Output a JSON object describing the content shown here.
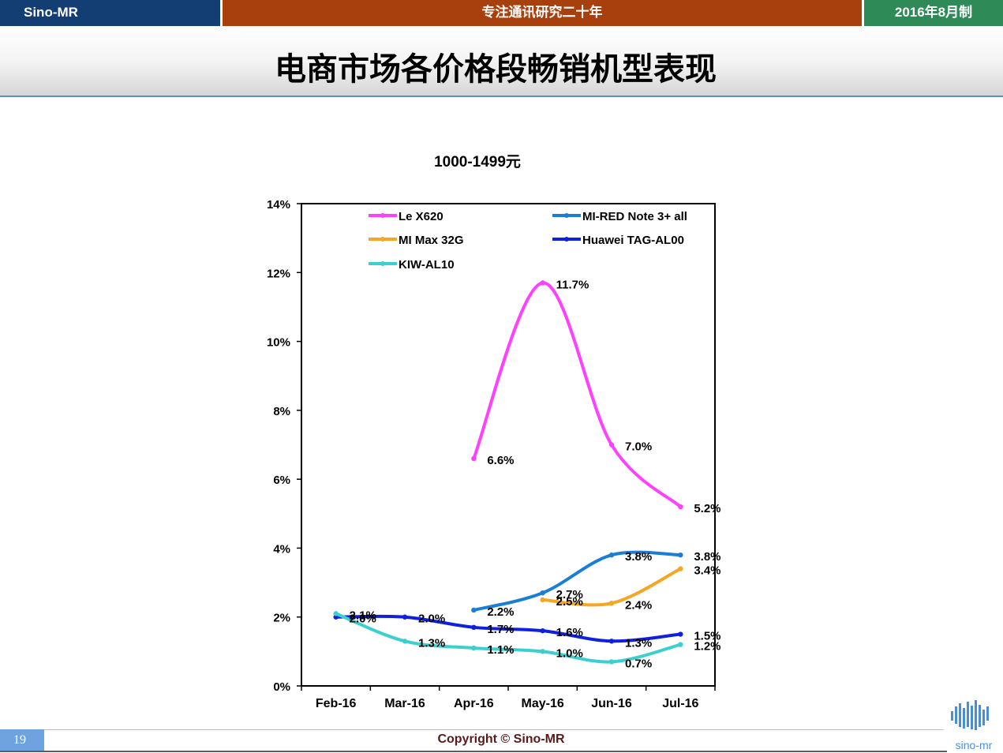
{
  "topbar": {
    "left": "Sino-MR",
    "middle": "专注通讯研究二十年",
    "right": "2016年8月制"
  },
  "page_title": "电商市场各价格段畅销机型表现",
  "footer": {
    "page_number": "19",
    "copyright": "Copyright © Sino-MR",
    "logo_text": "sino-mr"
  },
  "colors": {
    "topbar_left": "#123e73",
    "topbar_middle": "#a8400d",
    "topbar_right": "#2e8b57"
  },
  "chart_data": {
    "type": "line",
    "title": "1000-1499元",
    "xlabel": "",
    "ylabel": "",
    "categories": [
      "Feb-16",
      "Mar-16",
      "Apr-16",
      "May-16",
      "Jun-16",
      "Jul-16"
    ],
    "ylim": [
      0,
      14
    ],
    "y_ticks": [
      "0%",
      "2%",
      "4%",
      "6%",
      "8%",
      "10%",
      "12%",
      "14%"
    ],
    "grid": false,
    "legend_position": "top",
    "series": [
      {
        "name": "Le X620",
        "color": "#ff40ff",
        "values": [
          null,
          null,
          6.6,
          11.7,
          7.0,
          5.2
        ],
        "labels": [
          "",
          "",
          "6.6%",
          "11.7%",
          "7.0%",
          "5.2%"
        ]
      },
      {
        "name": "MI-RED Note 3+ all",
        "color": "#1a7fd4",
        "values": [
          null,
          null,
          2.2,
          2.7,
          3.8,
          3.8
        ],
        "labels": [
          "",
          "",
          "2.2%",
          "2.7%",
          "3.8%",
          "3.8%"
        ]
      },
      {
        "name": "MI Max 32G",
        "color": "#f5a623",
        "values": [
          null,
          null,
          null,
          2.5,
          2.4,
          3.4
        ],
        "labels": [
          "",
          "",
          "",
          "2.5%",
          "2.4%",
          "3.4%"
        ]
      },
      {
        "name": "Huawei TAG-AL00",
        "color": "#1020e0",
        "values": [
          2.0,
          2.0,
          1.7,
          1.6,
          1.3,
          1.5
        ],
        "labels": [
          "2.0%",
          "2.0%",
          "1.7%",
          "1.6%",
          "1.3%",
          "1.5%"
        ]
      },
      {
        "name": "KIW-AL10",
        "color": "#3ccfcf",
        "values": [
          2.1,
          1.3,
          1.1,
          1.0,
          0.7,
          1.2
        ],
        "labels": [
          "2.1%",
          "1.3%",
          "1.1%",
          "1.0%",
          "0.7%",
          "1.2%"
        ]
      }
    ]
  }
}
